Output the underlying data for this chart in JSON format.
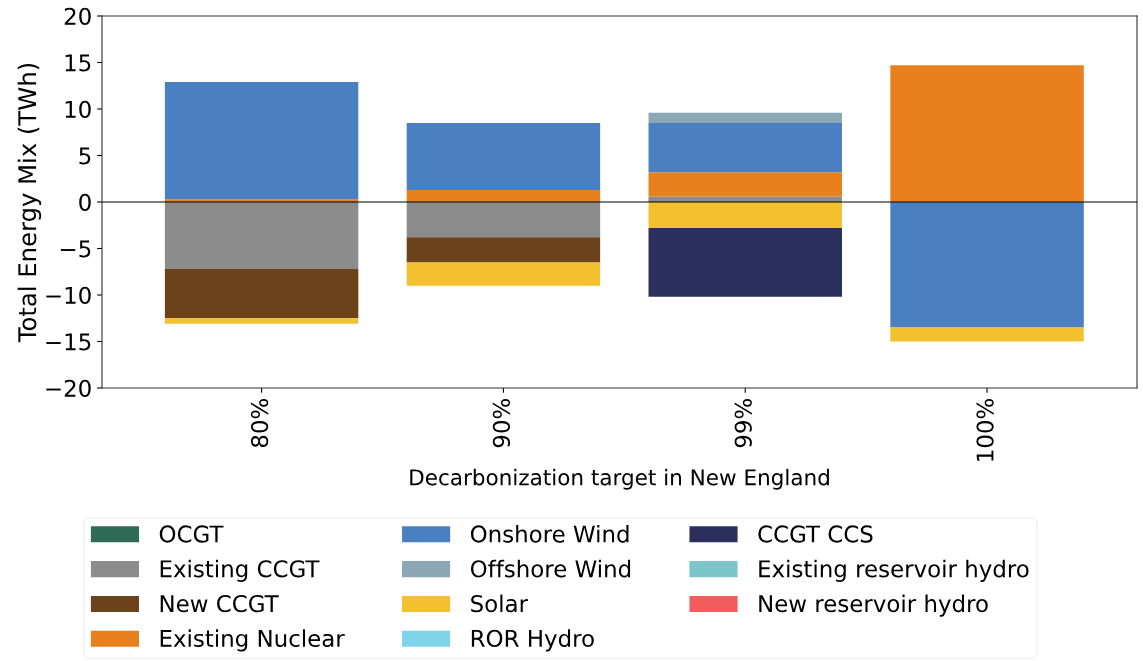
{
  "chart_data": {
    "type": "bar",
    "stacked": true,
    "categories": [
      "80%",
      "90%",
      "99%",
      "100%"
    ],
    "xlabel": "Decarbonization target in New England",
    "ylabel": "Total Energy Mix (TWh)",
    "ylim": [
      -20,
      20
    ],
    "yticks": [
      {
        "value": -20,
        "label": "−20"
      },
      {
        "value": -15,
        "label": "−15"
      },
      {
        "value": -10,
        "label": "−10"
      },
      {
        "value": -5,
        "label": "−5"
      },
      0,
      5,
      10,
      15,
      20
    ],
    "legend": "bottom",
    "ref_lines": [
      {
        "axis": "y",
        "value": 0,
        "color": "#000000"
      }
    ],
    "series": [
      {
        "name": "OCGT",
        "color": "#2e6b57",
        "values": [
          null,
          null,
          null,
          null
        ]
      },
      {
        "name": "Existing CCGT",
        "color": "#8c8c8c",
        "values": [
          -7.2,
          -3.8,
          0.6,
          null
        ]
      },
      {
        "name": "New CCGT",
        "color": "#6b4219",
        "values": [
          -5.3,
          -2.7,
          null,
          null
        ]
      },
      {
        "name": "Existing Nuclear",
        "color": "#e8801e",
        "values": [
          0.3,
          1.3,
          2.6,
          14.7
        ]
      },
      {
        "name": "Onshore Wind",
        "color": "#4a80c2",
        "values": [
          12.6,
          7.2,
          5.3,
          -13.5
        ]
      },
      {
        "name": "Offshore Wind",
        "color": "#8ba7b5",
        "values": [
          null,
          null,
          1.1,
          null
        ]
      },
      {
        "name": "Solar",
        "color": "#f3c030",
        "values": [
          -0.6,
          -2.5,
          -2.8,
          -1.5
        ]
      },
      {
        "name": "ROR Hydro",
        "color": "#80d4ea",
        "values": [
          null,
          null,
          null,
          null
        ]
      },
      {
        "name": "CCGT CCS",
        "color": "#2c2f5e",
        "values": [
          null,
          null,
          -7.4,
          null
        ]
      },
      {
        "name": "Existing reservoir hydro",
        "color": "#7cc6cb",
        "values": [
          null,
          null,
          null,
          null
        ]
      },
      {
        "name": "New reservoir hydro",
        "color": "#f25c5c",
        "values": [
          null,
          null,
          null,
          null
        ]
      }
    ]
  }
}
